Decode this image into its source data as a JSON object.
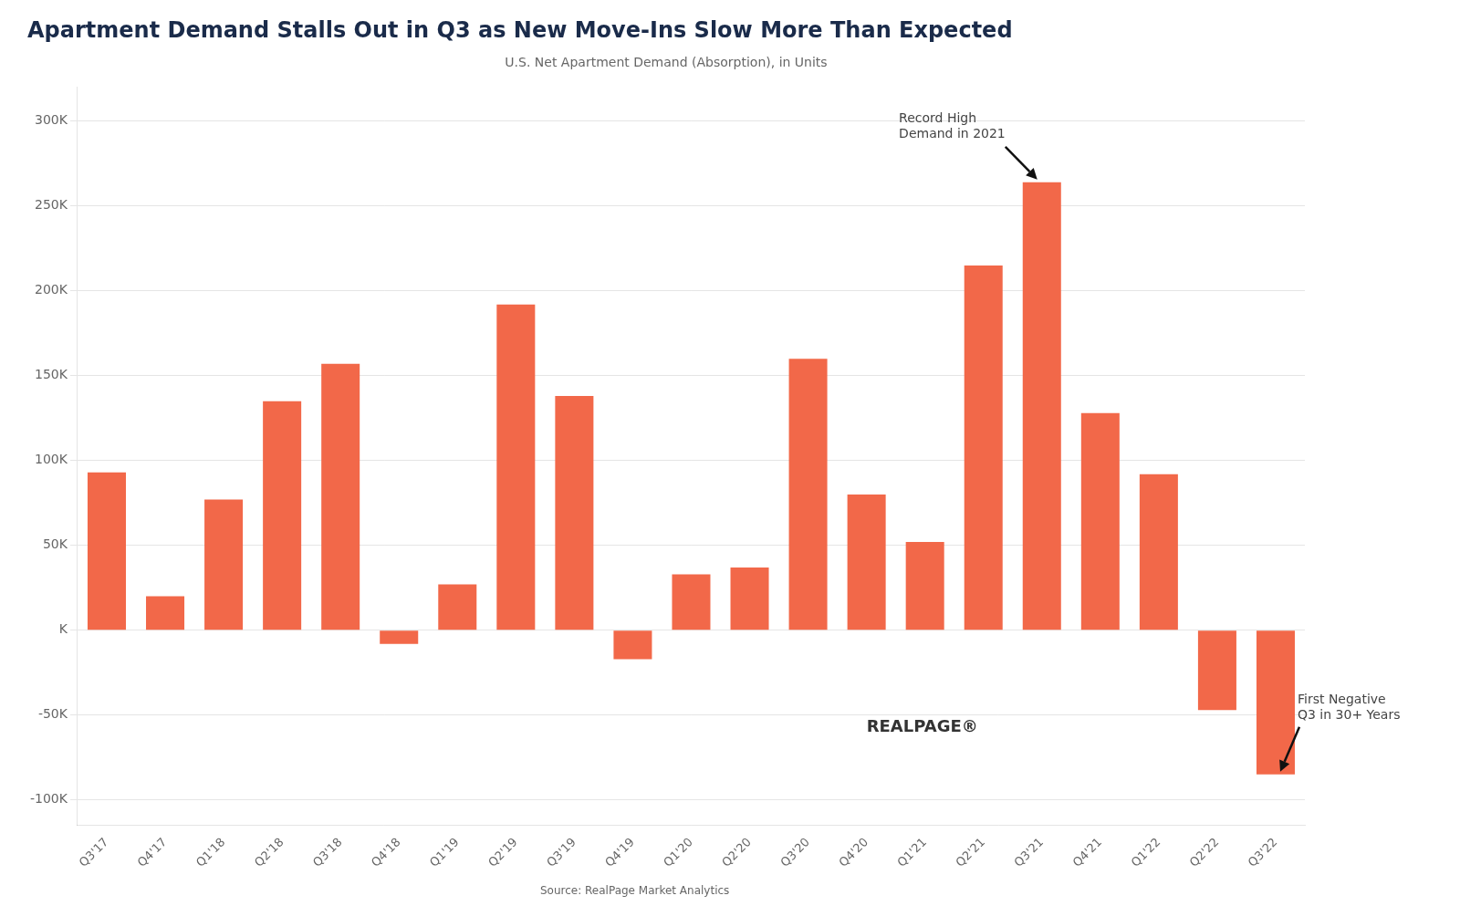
{
  "chart_data": {
    "type": "bar",
    "title": "Apartment Demand Stalls Out in Q3 as New Move-Ins Slow More Than Expected",
    "subtitle": "U.S. Net Apartment Demand (Absorption), in Units",
    "source": "Source: RealPage Market Analytics",
    "categories": [
      "Q3'17",
      "Q4'17",
      "Q1'18",
      "Q2'18",
      "Q3'18",
      "Q4'18",
      "Q1'19",
      "Q2'19",
      "Q3'19",
      "Q4'19",
      "Q1'20",
      "Q2'20",
      "Q3'20",
      "Q4'20",
      "Q1'21",
      "Q2'21",
      "Q3'21",
      "Q4'21",
      "Q1'22",
      "Q2'22",
      "Q3'22"
    ],
    "values": [
      93000,
      20000,
      77000,
      135000,
      157000,
      -8000,
      27000,
      192000,
      138000,
      -17000,
      33000,
      37000,
      160000,
      80000,
      52000,
      215000,
      264000,
      128000,
      92000,
      -47000,
      -85000
    ],
    "color": "#F26849",
    "ylim": [
      -115000,
      320000
    ],
    "yticks": [
      {
        "value": -100000,
        "label": "-100K"
      },
      {
        "value": -50000,
        "label": "-50K"
      },
      {
        "value": 0,
        "label": "K"
      },
      {
        "value": 50000,
        "label": "50K"
      },
      {
        "value": 100000,
        "label": "100K"
      },
      {
        "value": 150000,
        "label": "150K"
      },
      {
        "value": 200000,
        "label": "200K"
      },
      {
        "value": 250000,
        "label": "250K"
      },
      {
        "value": 300000,
        "label": "300K"
      }
    ],
    "grid": true,
    "annotations": [
      {
        "text": "Record High\nDemand in 2021",
        "category": "Q3'21"
      },
      {
        "text": "First Negative\nQ3 in 30+ Years",
        "category": "Q3'22"
      },
      {
        "text": "REALPAGE®"
      }
    ]
  }
}
